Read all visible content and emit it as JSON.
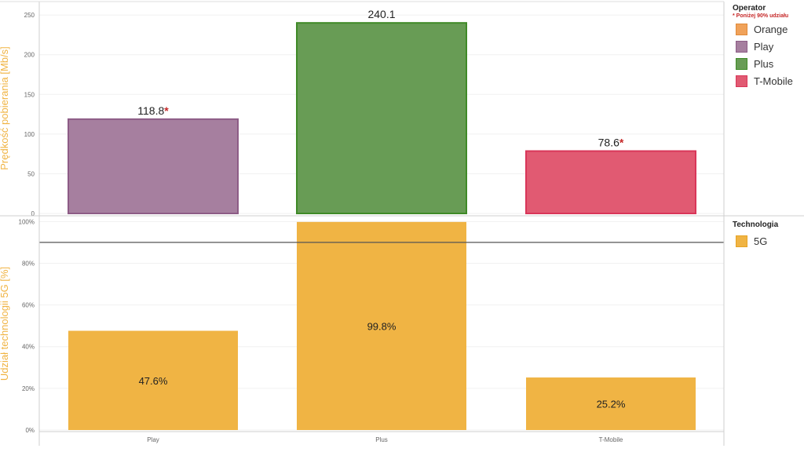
{
  "chart_data": [
    {
      "type": "bar",
      "ylabel": "Prędkość pobierania [Mb/s]",
      "ylim": [
        0,
        265
      ],
      "y_ticks": [
        "0",
        "50",
        "100",
        "150",
        "200",
        "250"
      ],
      "y_tick_values": [
        0,
        50,
        100,
        150,
        200,
        250
      ],
      "categories": [
        "Play",
        "Plus",
        "T-Mobile"
      ],
      "values": [
        118.8,
        240.1,
        78.6
      ],
      "data_labels": [
        "118.8",
        "240.1",
        "78.6"
      ],
      "flagged": [
        true,
        false,
        true
      ],
      "flag_symbol": "*",
      "bar_colors": [
        "#a67f9f",
        "#689c55",
        "#e15a72"
      ],
      "bar_edge_colors": [
        "#8d5c86",
        "#3f8a27",
        "#d93659"
      ],
      "grid": true
    },
    {
      "type": "bar",
      "ylabel": "Udział technologii 5G [%]",
      "ylim": [
        0,
        1.02
      ],
      "y_ticks": [
        "0%",
        "20%",
        "40%",
        "60%",
        "80%",
        "100%"
      ],
      "y_tick_values": [
        0,
        0.2,
        0.4,
        0.6,
        0.8,
        1.0
      ],
      "categories": [
        "Play",
        "Plus",
        "T-Mobile"
      ],
      "xlabels": [
        "Play",
        "Plus",
        "T-Mobile"
      ],
      "values": [
        0.476,
        0.998,
        0.252
      ],
      "data_labels": [
        "47.6%",
        "99.8%",
        "25.2%"
      ],
      "reference_line": 0.9,
      "bar_color": "#f0b444",
      "grid": true
    }
  ],
  "legend_operator": {
    "title": "Operator",
    "note": "* Poniżej 90% udziału",
    "items": [
      {
        "label": "Orange",
        "color": "#f0a25a",
        "border": "#e08a3a"
      },
      {
        "label": "Play",
        "color": "#a67f9f",
        "border": "#8d5c86"
      },
      {
        "label": "Plus",
        "color": "#689c55",
        "border": "#3f8a27"
      },
      {
        "label": "T-Mobile",
        "color": "#e15a72",
        "border": "#d93659"
      }
    ]
  },
  "legend_technology": {
    "title": "Technologia",
    "items": [
      {
        "label": "5G",
        "color": "#f0b444",
        "border": "#e6a325"
      }
    ]
  },
  "colors": {
    "axis_title": "#f0b444",
    "flag": "#c62828",
    "grid": "#f0f0f0",
    "reference_line": "#555555"
  }
}
